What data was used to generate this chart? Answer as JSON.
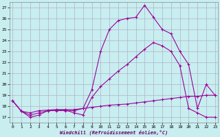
{
  "xlabel": "Windchill (Refroidissement éolien,°C)",
  "background_color": "#c8eef0",
  "grid_color": "#b0b0c8",
  "line_color": "#990099",
  "x_ticks": [
    0,
    1,
    2,
    3,
    4,
    5,
    6,
    7,
    8,
    9,
    10,
    11,
    12,
    13,
    14,
    15,
    16,
    17,
    18,
    19,
    20,
    21,
    22,
    23
  ],
  "y_ticks": [
    17,
    18,
    19,
    20,
    21,
    22,
    23,
    24,
    25,
    26,
    27
  ],
  "xlim": [
    -0.3,
    23.3
  ],
  "ylim": [
    16.5,
    27.5
  ],
  "curve1_x": [
    0,
    1,
    2,
    3,
    4,
    5,
    6,
    7,
    8,
    9,
    10,
    11,
    12,
    13,
    14,
    15,
    16,
    17,
    18,
    19,
    20,
    21,
    22,
    23
  ],
  "curve1_y": [
    18.5,
    17.55,
    17.0,
    17.2,
    17.6,
    17.6,
    17.6,
    17.6,
    17.8,
    19.5,
    23.0,
    25.0,
    25.8,
    26.0,
    26.1,
    27.2,
    26.1,
    25.0,
    24.6,
    23.0,
    21.8,
    17.8,
    20.0,
    19.0
  ],
  "curve2_x": [
    0,
    1,
    2,
    3,
    4,
    5,
    6,
    7,
    8,
    9,
    10,
    11,
    12,
    13,
    14,
    15,
    16,
    17,
    18,
    19,
    20,
    21,
    22,
    23
  ],
  "curve2_y": [
    18.5,
    17.55,
    17.2,
    17.4,
    17.6,
    17.65,
    17.65,
    17.4,
    17.2,
    18.8,
    19.8,
    20.5,
    21.2,
    21.8,
    22.5,
    23.2,
    23.8,
    23.5,
    23.0,
    21.7,
    17.8,
    17.4,
    17.0,
    17.0
  ],
  "curve3_x": [
    0,
    1,
    2,
    3,
    4,
    5,
    6,
    7,
    8,
    9,
    10,
    11,
    12,
    13,
    14,
    15,
    16,
    17,
    18,
    19,
    20,
    21,
    22,
    23
  ],
  "curve3_y": [
    18.5,
    17.55,
    17.4,
    17.6,
    17.65,
    17.7,
    17.7,
    17.7,
    17.8,
    17.9,
    18.0,
    18.1,
    18.15,
    18.2,
    18.3,
    18.4,
    18.5,
    18.6,
    18.7,
    18.8,
    18.9,
    18.9,
    19.0,
    19.0
  ]
}
